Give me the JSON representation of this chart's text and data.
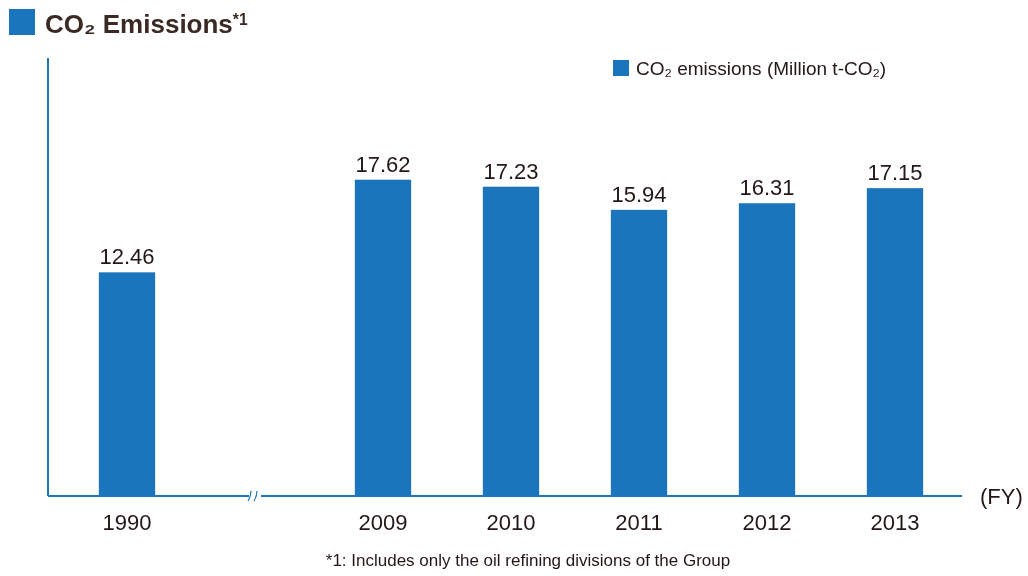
{
  "chart_data": {
    "type": "bar",
    "title": "CO₂ Emissions$^{*1}$",
    "xlabel": "(FY)",
    "categories": [
      "1990",
      null,
      "2009",
      "2010",
      "2011",
      "2012",
      "2013"
    ],
    "series": [
      {
        "name": "CO₂ emissions (Million t-CO₂)",
        "color": "#1b75bc",
        "values": [
          12.46,
          null,
          17.62,
          17.23,
          15.94,
          16.31,
          17.15
        ]
      }
    ],
    "ylim": [
      0,
      24.4
    ],
    "tick_labels": "x",
    "data_labels": true,
    "legend": "top right",
    "annotations": [
      "*1: Includes only the oil refining divisions of the Group"
    ]
  }
}
